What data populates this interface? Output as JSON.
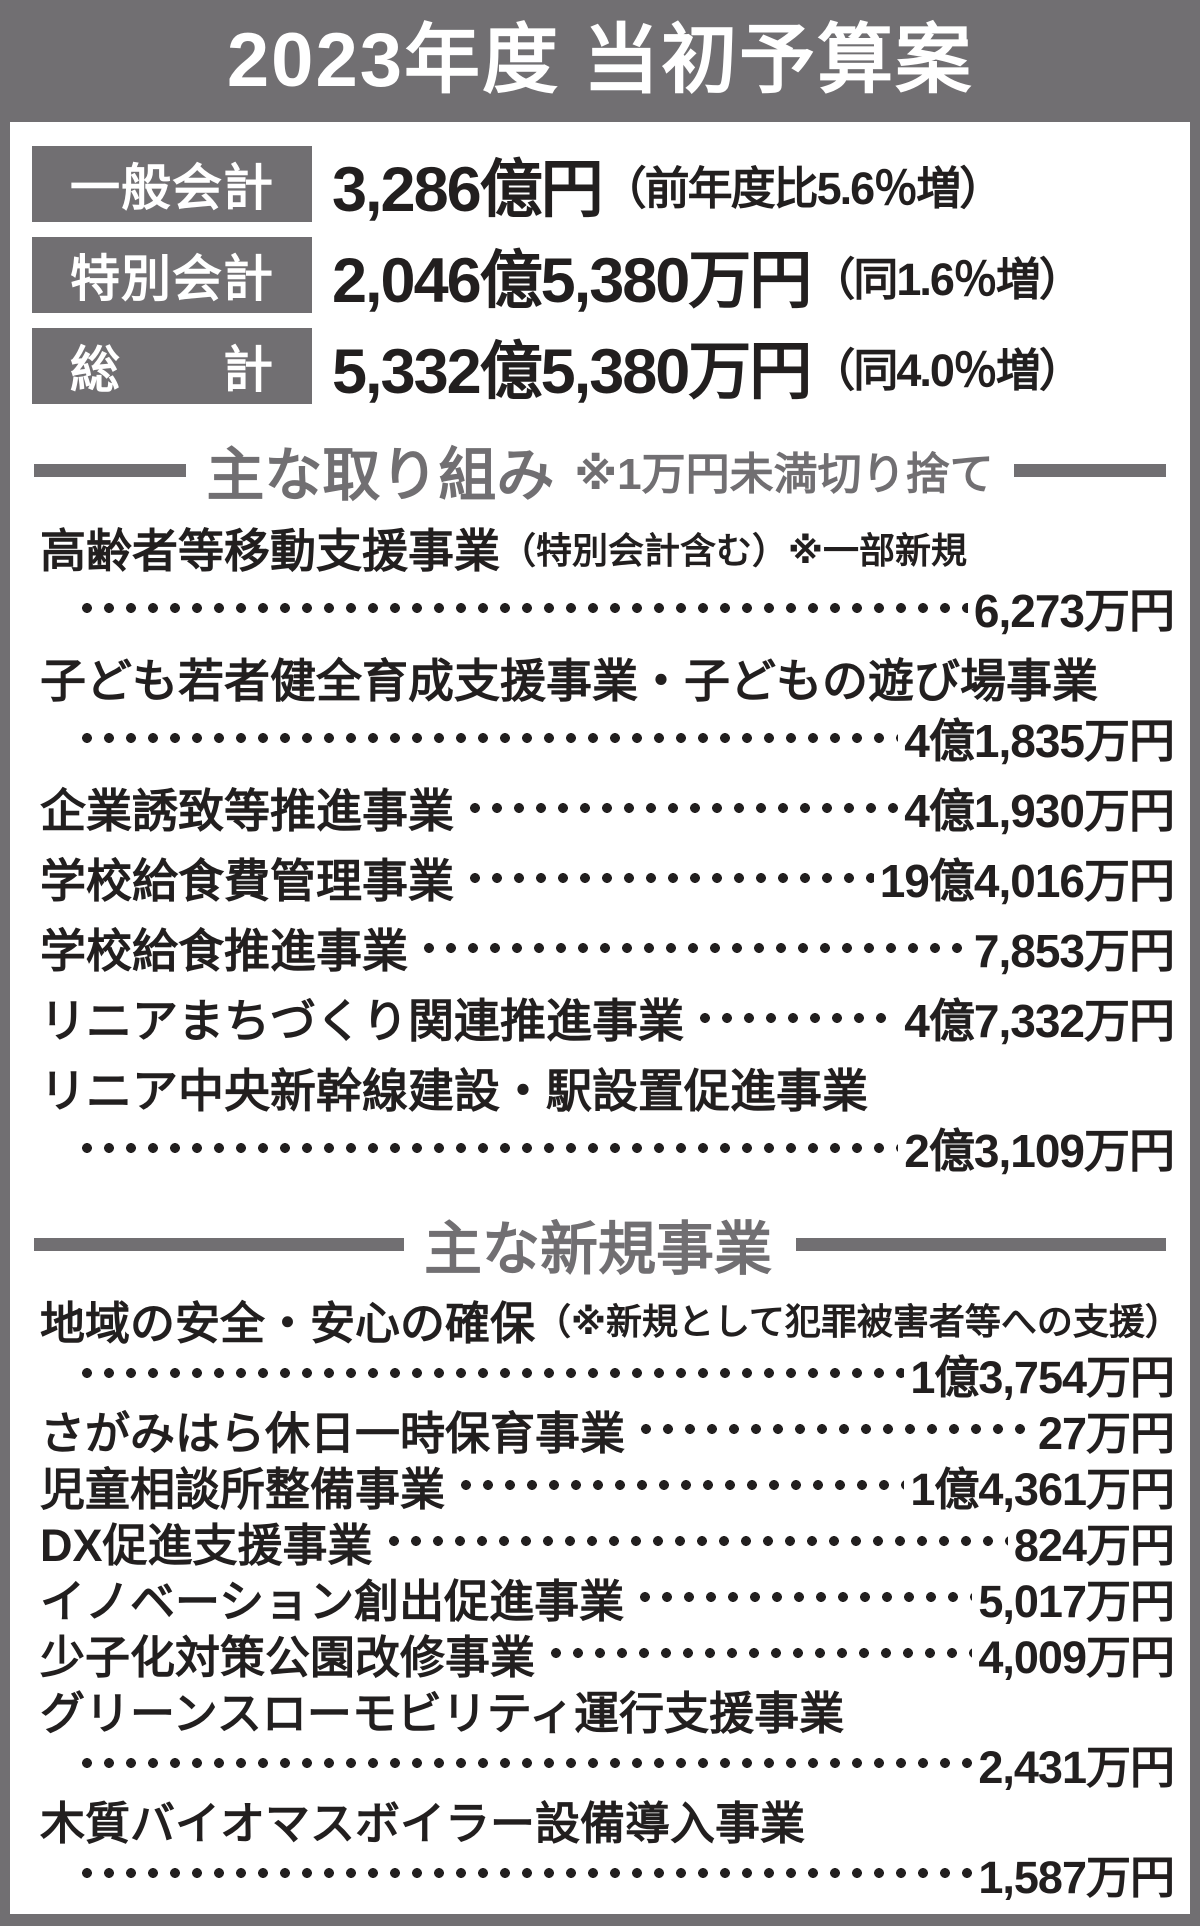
{
  "colors": {
    "accent_gray": "#716f72",
    "text_black": "#221f1f",
    "background": "#ffffff"
  },
  "header": {
    "title": "2023年度 当初予算案"
  },
  "summary": {
    "rows": [
      {
        "label": "一般会計",
        "amount": "3,286億円",
        "note": "（前年度比5.6％増）"
      },
      {
        "label": "特別会計",
        "amount": "2,046億5,380万円",
        "note": "（同1.6％増）"
      },
      {
        "label": "総　　計",
        "amount": "5,332億5,380万円",
        "note": "（同4.0％増）"
      }
    ]
  },
  "sections": [
    {
      "title": "主な取り組み",
      "note": "※1万円未満切り捨て",
      "items": [
        {
          "name": "高齢者等移動支援事業",
          "name_note": "（特別会計含む）※一部新規",
          "amount": "6,273万円"
        },
        {
          "name": "子ども若者健全育成支援事業・子どもの遊び場事業",
          "amount": "4億1,835万円"
        },
        {
          "name": "企業誘致等推進事業",
          "amount": "4億1,930万円"
        },
        {
          "name": "学校給食費管理事業",
          "amount": "19億4,016万円"
        },
        {
          "name": "学校給食推進事業",
          "amount": "7,853万円"
        },
        {
          "name": "リニアまちづくり関連推進事業",
          "amount": "4億7,332万円"
        },
        {
          "name": "リニア中央新幹線建設・駅設置促進事業",
          "amount": "2億3,109万円"
        }
      ]
    },
    {
      "title": "主な新規事業",
      "items": [
        {
          "name": "地域の安全・安心の確保",
          "name_note": "（※新規として犯罪被害者等への支援）",
          "amount": "1億3,754万円"
        },
        {
          "name": "さがみはら休日一時保育事業",
          "amount": "27万円"
        },
        {
          "name": "児童相談所整備事業",
          "amount": "1億4,361万円"
        },
        {
          "name": "DX促進支援事業",
          "amount": "824万円"
        },
        {
          "name": "イノベーション創出促進事業",
          "amount": "5,017万円"
        },
        {
          "name": "少子化対策公園改修事業",
          "amount": "4,009万円"
        },
        {
          "name": "グリーンスローモビリティ運行支援事業",
          "amount": "2,431万円"
        },
        {
          "name": "木質バイオマスボイラー設備導入事業",
          "amount": "1,587万円"
        }
      ]
    }
  ]
}
